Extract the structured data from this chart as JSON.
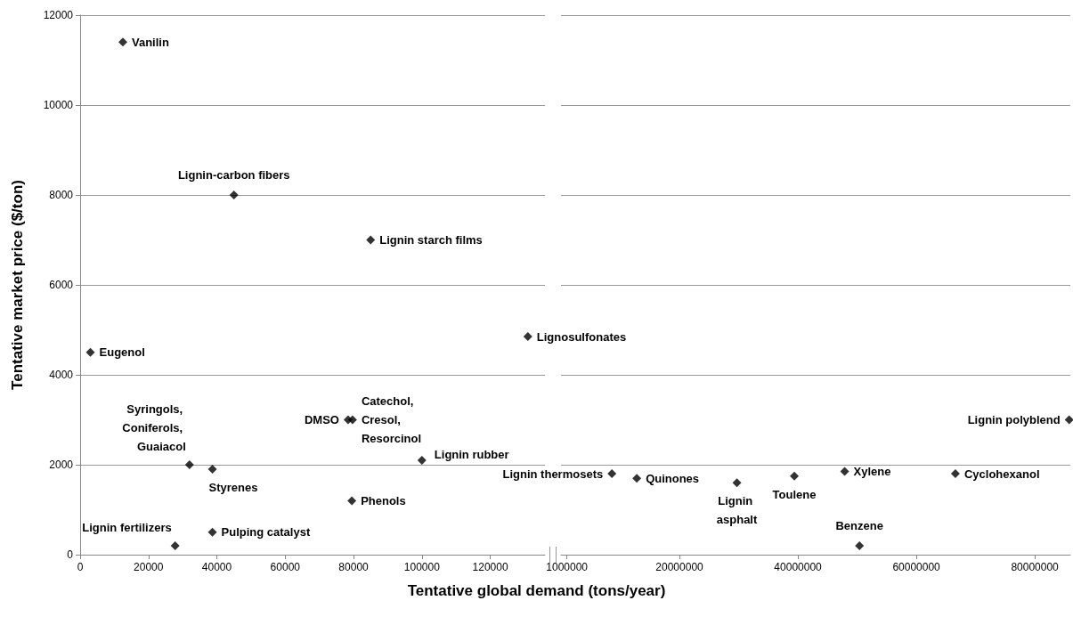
{
  "chart_data": [
    {
      "type": "scatter",
      "xlabel": "Tentative global demand (tons/year)",
      "ylabel": "Tentative market price ($/ton)",
      "x": [
        12500,
        45000,
        85000,
        3000,
        131000,
        32000,
        38700,
        78400,
        79700,
        79500,
        100000,
        27800,
        38700
      ],
      "values": [
        11400,
        8000,
        7000,
        4500,
        4850,
        2000,
        1900,
        3000,
        3000,
        1200,
        2100,
        200,
        500
      ],
      "color": "#000000",
      "marker": "diamond",
      "grid": "y",
      "xlim": [
        0,
        136000
      ],
      "xticks": [
        0,
        20000,
        40000,
        60000,
        80000,
        100000,
        120000
      ],
      "ylim": [
        0,
        12000
      ],
      "yticks": [
        0,
        2000,
        4000,
        6000,
        8000,
        10000,
        12000
      ],
      "annotations": [
        {
          "text": "Vanilin",
          "x": 12500,
          "y": 11400
        },
        {
          "text": "Lignin-carbon fibers",
          "x": 45000,
          "y": 8000
        },
        {
          "text": "Lignin starch films",
          "x": 85000,
          "y": 7000
        },
        {
          "text": "Eugenol",
          "x": 3000,
          "y": 4500
        },
        {
          "text": "Lignosulfonates",
          "x": 131000,
          "y": 4850
        },
        {
          "text": "Syringols, Coniferols, Guaiacol",
          "x": 32000,
          "y": 2000
        },
        {
          "text": "Styrenes",
          "x": 38700,
          "y": 1900
        },
        {
          "text": "DMSO",
          "x": 78400,
          "y": 3000
        },
        {
          "text": "Catechol, Cresol, Resorcinol",
          "x": 79700,
          "y": 3000
        },
        {
          "text": "Phenols",
          "x": 79500,
          "y": 1200
        },
        {
          "text": "Lignin rubber",
          "x": 100000,
          "y": 2100
        },
        {
          "text": "Lignin fertilizers",
          "x": 27800,
          "y": 200
        },
        {
          "text": "Pulping catalyst",
          "x": 38700,
          "y": 500
        }
      ]
    },
    {
      "type": "scatter",
      "x": [
        8600000,
        12800000,
        29700000,
        39400000,
        47900000,
        50400000,
        66600000,
        85800000
      ],
      "values": [
        1800,
        1700,
        1600,
        1750,
        1850,
        200,
        1800,
        3000
      ],
      "color": "#000000",
      "marker": "diamond",
      "grid": "y",
      "tick_labels": "x",
      "xlim": [
        0,
        86000000
      ],
      "xticks": [
        1000000,
        20000000,
        40000000,
        60000000,
        80000000
      ],
      "ylim": [
        0,
        12000
      ],
      "yticks": [
        0,
        2000,
        4000,
        6000,
        8000,
        10000,
        12000
      ],
      "annotations": [
        {
          "text": "Lignin thermosets",
          "x": 8600000,
          "y": 1800
        },
        {
          "text": "Quinones",
          "x": 12800000,
          "y": 1700
        },
        {
          "text": "Lignin asphalt",
          "x": 29700000,
          "y": 1600
        },
        {
          "text": "Toulene",
          "x": 39400000,
          "y": 1750
        },
        {
          "text": "Xylene",
          "x": 47900000,
          "y": 1850
        },
        {
          "text": "Benzene",
          "x": 50400000,
          "y": 200
        },
        {
          "text": "Cyclohexanol",
          "x": 66600000,
          "y": 1800
        },
        {
          "text": "Lignin polyblend",
          "x": 85800000,
          "y": 3000
        }
      ]
    }
  ]
}
